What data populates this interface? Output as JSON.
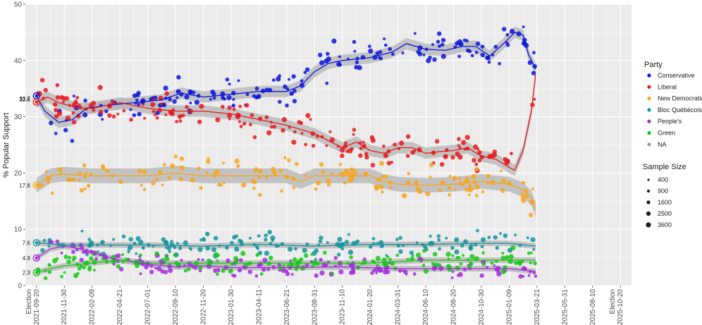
{
  "chart_data": {
    "type": "scatter",
    "title": "",
    "xlabel": "",
    "ylabel": "% Popular Support",
    "ylim": [
      0,
      50
    ],
    "y_ticks": [
      "0",
      "10",
      "20",
      "30",
      "40",
      "50"
    ],
    "x_ticks": [
      "Election\n2021-09-20",
      "2021-11-30",
      "2022-02-09",
      "2022-04-21",
      "2022-07-01",
      "2022-09-10",
      "2022-11-20",
      "2023-01-30",
      "2023-04-11",
      "2023-06-21",
      "2023-08-31",
      "2023-11-10",
      "2024-01-20",
      "2024-03-31",
      "2024-06-10",
      "2024-08-20",
      "2024-10-30",
      "2025-01-09",
      "2025-03-21",
      "2025-05-31",
      "2025-08-10",
      "Election\n2025-10-20"
    ],
    "x_index_range": [
      -0.4,
      21.4
    ],
    "grid": true,
    "legend_position": "right",
    "legend_title": "Party",
    "series": [
      {
        "name": "Conservative",
        "color": "#0a14dc",
        "election_value": 33.7,
        "trend": [
          [
            0,
            33.7
          ],
          [
            0.3,
            31
          ],
          [
            0.8,
            29
          ],
          [
            1.3,
            29.5
          ],
          [
            1.8,
            31.5
          ],
          [
            2.5,
            32
          ],
          [
            3.5,
            32.5
          ],
          [
            4.5,
            33
          ],
          [
            5.2,
            34.2
          ],
          [
            6,
            33.5
          ],
          [
            7,
            34
          ],
          [
            8,
            34.5
          ],
          [
            9,
            34.5
          ],
          [
            9.5,
            35.5
          ],
          [
            10,
            38
          ],
          [
            10.5,
            39.5
          ],
          [
            11,
            40
          ],
          [
            12,
            40.5
          ],
          [
            12.8,
            41.5
          ],
          [
            13.3,
            43
          ],
          [
            14,
            42
          ],
          [
            14.7,
            41.8
          ],
          [
            15.3,
            42.5
          ],
          [
            15.8,
            42.5
          ],
          [
            16.3,
            40.8
          ],
          [
            16.8,
            43
          ],
          [
            17.2,
            45
          ],
          [
            17.5,
            44.5
          ],
          [
            17.7,
            41
          ],
          [
            17.95,
            38.5
          ]
        ],
        "band": 1.0
      },
      {
        "name": "Liberal",
        "color": "#e8161c",
        "election_value": 32.6,
        "trend": [
          [
            0,
            32.6
          ],
          [
            0.4,
            33.5
          ],
          [
            0.8,
            32.5
          ],
          [
            1.5,
            31.5
          ],
          [
            2,
            31.5
          ],
          [
            3,
            32.5
          ],
          [
            4,
            31.5
          ],
          [
            5,
            31
          ],
          [
            6,
            31
          ],
          [
            7,
            30.5
          ],
          [
            8,
            29.5
          ],
          [
            9,
            28.5
          ],
          [
            10,
            27
          ],
          [
            10.6,
            25.5
          ],
          [
            11,
            24.5
          ],
          [
            11.5,
            25.5
          ],
          [
            12,
            24
          ],
          [
            12.5,
            23.5
          ],
          [
            13,
            24.5
          ],
          [
            13.5,
            24.5
          ],
          [
            14,
            23.5
          ],
          [
            14.5,
            23.8
          ],
          [
            15,
            24
          ],
          [
            15.5,
            24.5
          ],
          [
            16,
            23
          ],
          [
            16.5,
            22.5
          ],
          [
            17,
            21
          ],
          [
            17.2,
            20.5
          ],
          [
            17.5,
            24
          ],
          [
            17.8,
            31
          ],
          [
            17.95,
            37.5
          ]
        ],
        "band": 1.0
      },
      {
        "name": "New Democratic",
        "color": "#f8a41c",
        "election_value": 17.8,
        "trend": [
          [
            0,
            17.8
          ],
          [
            0.5,
            19.5
          ],
          [
            1,
            19.8
          ],
          [
            2,
            19.5
          ],
          [
            3,
            19.5
          ],
          [
            4,
            19.5
          ],
          [
            5,
            20
          ],
          [
            6,
            19.5
          ],
          [
            7,
            19.5
          ],
          [
            8,
            19.5
          ],
          [
            9,
            19.5
          ],
          [
            9.5,
            18.5
          ],
          [
            10,
            19.5
          ],
          [
            11,
            19.5
          ],
          [
            12,
            19.5
          ],
          [
            12.5,
            18.5
          ],
          [
            13,
            18
          ],
          [
            14,
            17.8
          ],
          [
            15,
            18
          ],
          [
            16,
            18.5
          ],
          [
            17,
            18
          ],
          [
            17.5,
            17
          ],
          [
            17.8,
            15.5
          ],
          [
            17.95,
            13.5
          ]
        ],
        "band": 1.3
      },
      {
        "name": "Bloc Québécois",
        "color": "#13949c",
        "election_value": 7.6,
        "trend": [
          [
            0,
            7.6
          ],
          [
            1,
            7.2
          ],
          [
            2,
            7.2
          ],
          [
            4,
            7.2
          ],
          [
            6,
            7
          ],
          [
            8,
            7.3
          ],
          [
            10,
            7
          ],
          [
            12,
            7.3
          ],
          [
            14,
            7.3
          ],
          [
            16,
            7.5
          ],
          [
            17,
            7.5
          ],
          [
            17.95,
            7
          ]
        ],
        "band": 0.5
      },
      {
        "name": "People's",
        "color": "#a42bdc",
        "election_value": 4.9,
        "trend": [
          [
            0,
            4.9
          ],
          [
            0.5,
            6.5
          ],
          [
            1,
            7
          ],
          [
            1.6,
            6.5
          ],
          [
            2.2,
            5.5
          ],
          [
            3,
            4.5
          ],
          [
            4,
            3.8
          ],
          [
            5,
            3.3
          ],
          [
            6,
            3.5
          ],
          [
            7,
            3.2
          ],
          [
            9,
            3.2
          ],
          [
            11,
            3.3
          ],
          [
            13,
            3
          ],
          [
            15,
            3
          ],
          [
            17,
            3
          ],
          [
            17.95,
            2.5
          ]
        ],
        "band": 0.5
      },
      {
        "name": "Green",
        "color": "#14c814",
        "election_value": 2.3,
        "trend": [
          [
            0,
            2.3
          ],
          [
            0.5,
            3
          ],
          [
            1,
            3.5
          ],
          [
            2,
            4
          ],
          [
            3,
            4.5
          ],
          [
            4,
            4
          ],
          [
            6,
            4
          ],
          [
            8,
            4
          ],
          [
            10,
            4
          ],
          [
            12,
            4
          ],
          [
            14,
            4.5
          ],
          [
            16,
            4.5
          ],
          [
            17,
            4.5
          ],
          [
            17.95,
            4.5
          ]
        ],
        "band": 0.5
      },
      {
        "name": "NA",
        "color": "#999999"
      }
    ],
    "scatter_spec": [
      {
        "series": "Conservative",
        "n": 175,
        "jitter": 1.4,
        "seed": 11
      },
      {
        "series": "Liberal",
        "n": 175,
        "jitter": 1.5,
        "seed": 23
      },
      {
        "series": "New Democratic",
        "n": 165,
        "jitter": 1.4,
        "seed": 37
      },
      {
        "series": "Bloc Québécois",
        "n": 160,
        "jitter": 0.9,
        "seed": 41
      },
      {
        "series": "People's",
        "n": 160,
        "jitter": 0.8,
        "seed": 53
      },
      {
        "series": "Green",
        "n": 160,
        "jitter": 0.9,
        "seed": 67
      }
    ],
    "election_annotations": [
      {
        "label": "33.7",
        "value": 33.7,
        "color": "#0a14dc",
        "label_offset": 4
      },
      {
        "label": "32.6",
        "value": 32.6,
        "color": "#e8161c",
        "label_offset": -4
      },
      {
        "label": "17.8",
        "value": 17.8,
        "color": "#f8a41c",
        "label_offset": 0
      },
      {
        "label": "7.6",
        "value": 7.6,
        "color": "#13949c",
        "label_offset": 0
      },
      {
        "label": "4.9",
        "value": 4.9,
        "color": "#a42bdc",
        "label_offset": 0
      },
      {
        "label": "2.3",
        "value": 2.3,
        "color": "#14c814",
        "label_offset": 0
      }
    ],
    "size_legend": {
      "title": "Sample Size",
      "values": [
        "400",
        "900",
        "1600",
        "2500",
        "3600"
      ]
    }
  },
  "colors": {
    "panel": "#ebebeb",
    "grid": "#ffffff",
    "band": "#b4b4b4"
  }
}
